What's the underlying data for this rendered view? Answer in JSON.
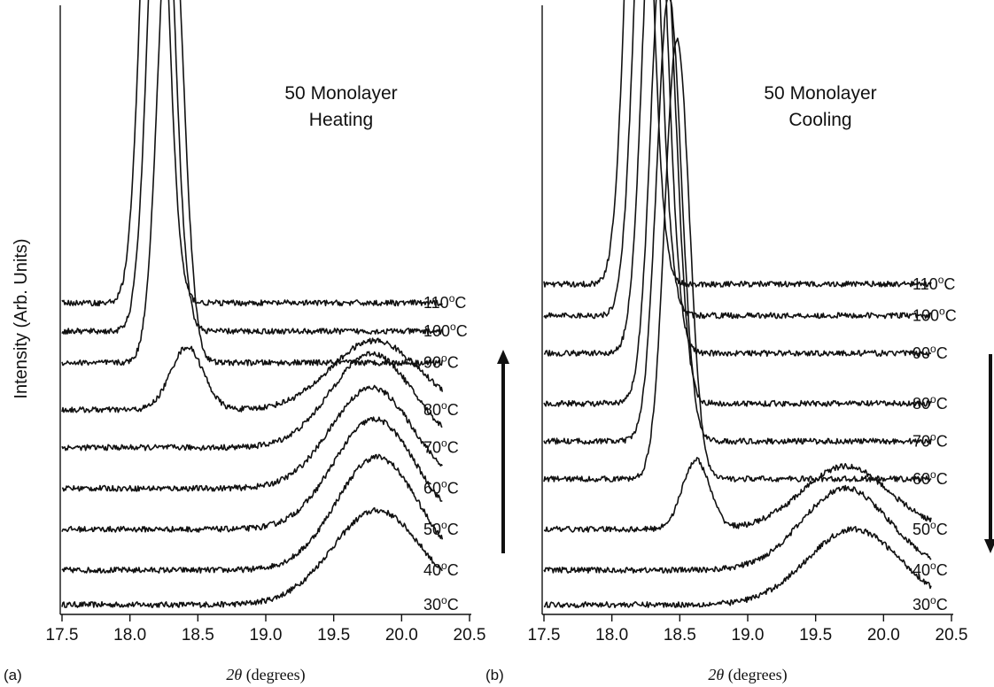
{
  "figure": {
    "ylabel": "Intensity (Arb. Units)"
  },
  "chart_data": [
    {
      "type": "line",
      "panel_label": "(a)",
      "title_lines": [
        "50 Monolayer",
        "Heating"
      ],
      "xlabel_math": "2θ",
      "xlabel_units": "(degrees)",
      "ylabel": "Intensity (Arb. Units)",
      "xlim": [
        17.5,
        20.5
      ],
      "xticks": [
        17.5,
        18.0,
        18.5,
        19.0,
        19.5,
        20.0,
        20.5
      ],
      "xtick_labels": [
        "17.5",
        "18.0",
        "18.5",
        "19.0",
        "19.5",
        "20.0",
        "20.5"
      ],
      "x_range": [
        17.5,
        20.3
      ],
      "arrow_direction": "up",
      "series": [
        {
          "name": "30°C",
          "label": "30",
          "baseline": 0.0,
          "peaks": [
            {
              "x": 19.82,
              "h": 0.3,
              "w": 0.33
            }
          ]
        },
        {
          "name": "40°C",
          "label": "40",
          "baseline": 0.11,
          "peaks": [
            {
              "x": 19.82,
              "h": 0.36,
              "w": 0.3
            }
          ]
        },
        {
          "name": "50°C",
          "label": "50",
          "baseline": 0.24,
          "peaks": [
            {
              "x": 19.8,
              "h": 0.35,
              "w": 0.3
            }
          ]
        },
        {
          "name": "60°C",
          "label": "60",
          "baseline": 0.37,
          "peaks": [
            {
              "x": 19.78,
              "h": 0.32,
              "w": 0.3
            }
          ]
        },
        {
          "name": "70°C",
          "label": "70",
          "baseline": 0.5,
          "peaks": [
            {
              "x": 19.78,
              "h": 0.3,
              "w": 0.3
            }
          ]
        },
        {
          "name": "80°C",
          "label": "80",
          "baseline": 0.62,
          "peaks": [
            {
              "x": 18.42,
              "h": 0.2,
              "w": 0.12
            },
            {
              "x": 19.8,
              "h": 0.22,
              "w": 0.32
            }
          ]
        },
        {
          "name": "90°C",
          "label": "90",
          "baseline": 0.77,
          "peaks": [
            {
              "x": 18.3,
              "h": 1.58,
              "w": 0.09
            }
          ]
        },
        {
          "name": "100°C",
          "label": "100",
          "baseline": 0.87,
          "peaks": [
            {
              "x": 18.23,
              "h": 1.82,
              "w": 0.09
            }
          ]
        },
        {
          "name": "110°C",
          "label": "110",
          "baseline": 0.96,
          "peaks": [
            {
              "x": 18.18,
              "h": 1.93,
              "w": 0.09
            }
          ]
        }
      ]
    },
    {
      "type": "line",
      "panel_label": "(b)",
      "title_lines": [
        "50 Monolayer",
        "Cooling"
      ],
      "xlabel_math": "2θ",
      "xlabel_units": "(degrees)",
      "ylabel": "",
      "xlim": [
        17.5,
        20.5
      ],
      "xticks": [
        17.5,
        18.0,
        18.5,
        19.0,
        19.5,
        20.0,
        20.5
      ],
      "xtick_labels": [
        "17.5",
        "18.0",
        "18.5",
        "19.0",
        "19.5",
        "20.0",
        "20.5"
      ],
      "x_range": [
        17.5,
        20.35
      ],
      "arrow_direction": "down",
      "series": [
        {
          "name": "30°C",
          "label": "30",
          "baseline": 0.0,
          "peaks": [
            {
              "x": 19.78,
              "h": 0.24,
              "w": 0.34
            }
          ]
        },
        {
          "name": "40°C",
          "label": "40",
          "baseline": 0.11,
          "peaks": [
            {
              "x": 19.72,
              "h": 0.26,
              "w": 0.32
            }
          ]
        },
        {
          "name": "50°C",
          "label": "50",
          "baseline": 0.24,
          "peaks": [
            {
              "x": 18.62,
              "h": 0.22,
              "w": 0.1
            },
            {
              "x": 19.72,
              "h": 0.2,
              "w": 0.32
            }
          ]
        },
        {
          "name": "60°C",
          "label": "60",
          "baseline": 0.4,
          "peaks": [
            {
              "x": 18.48,
              "h": 1.4,
              "w": 0.09
            }
          ]
        },
        {
          "name": "70°C",
          "label": "70",
          "baseline": 0.52,
          "peaks": [
            {
              "x": 18.42,
              "h": 1.42,
              "w": 0.09
            }
          ]
        },
        {
          "name": "80°C",
          "label": "80",
          "baseline": 0.64,
          "peaks": [
            {
              "x": 18.38,
              "h": 1.54,
              "w": 0.09
            }
          ]
        },
        {
          "name": "90°C",
          "label": "90",
          "baseline": 0.8,
          "peaks": [
            {
              "x": 18.32,
              "h": 1.68,
              "w": 0.09
            }
          ]
        },
        {
          "name": "100°C",
          "label": "100",
          "baseline": 0.92,
          "peaks": [
            {
              "x": 18.26,
              "h": 1.76,
              "w": 0.09
            }
          ]
        },
        {
          "name": "110°C",
          "label": "110",
          "baseline": 1.02,
          "peaks": [
            {
              "x": 18.2,
              "h": 1.9,
              "w": 0.09
            }
          ]
        }
      ]
    }
  ]
}
